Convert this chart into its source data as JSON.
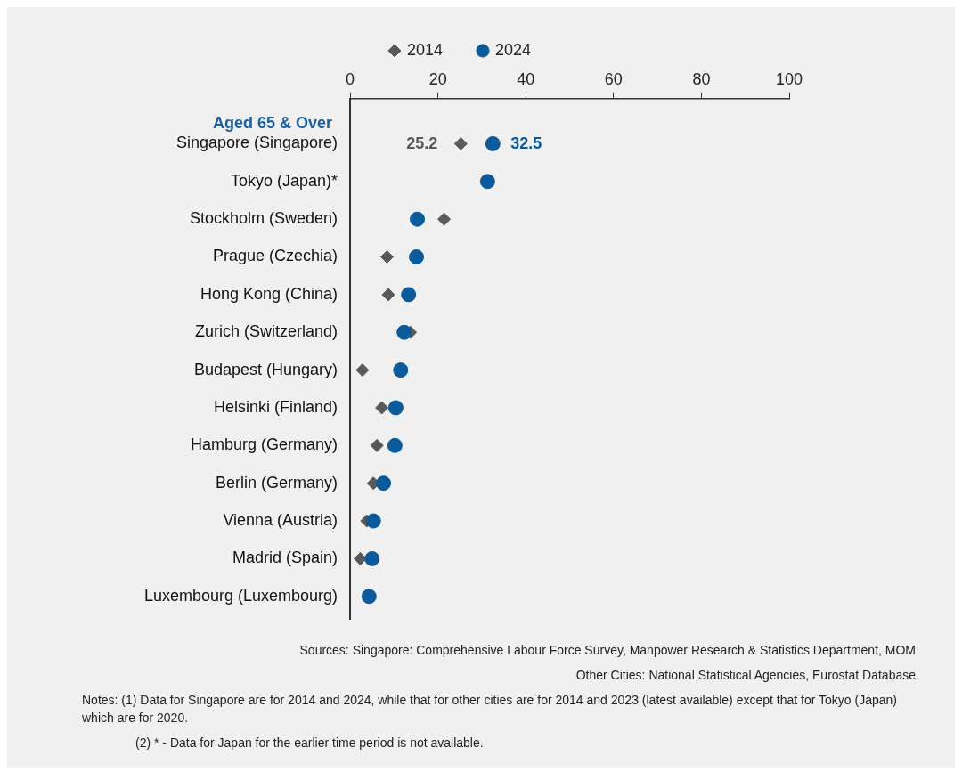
{
  "chart_data": {
    "type": "scatter",
    "subtitle": "Aged 65 & Over",
    "categories": [
      "Singapore (Singapore)",
      "Tokyo (Japan)*",
      "Stockholm (Sweden)",
      "Prague (Czechia)",
      "Hong Kong (China)",
      "Zurich (Switzerland)",
      "Budapest (Hungary)",
      "Helsinki (Finland)",
      "Hamburg (Germany)",
      "Berlin (Germany)",
      "Vienna (Austria)",
      "Madrid (Spain)",
      "Luxembourg (Luxembourg)"
    ],
    "orientation": "horizontal",
    "series": [
      {
        "name": "2014",
        "color": "#595959",
        "marker": "diamond",
        "values": [
          25.2,
          null,
          21.4,
          8.4,
          8.7,
          13.7,
          2.8,
          7.2,
          6.1,
          5.3,
          3.8,
          2.3,
          null
        ],
        "value_labels": [
          "25.2",
          null,
          null,
          null,
          null,
          null,
          null,
          null,
          null,
          null,
          null,
          null,
          null
        ]
      },
      {
        "name": "2024",
        "color": "#0a5a9c",
        "marker": "circle",
        "values": [
          32.5,
          31.3,
          15.3,
          15.1,
          13.3,
          12.3,
          11.5,
          10.4,
          10.2,
          7.6,
          5.3,
          5.0,
          4.3
        ],
        "value_labels": [
          "32.5",
          null,
          null,
          null,
          null,
          null,
          null,
          null,
          null,
          null,
          null,
          null,
          null
        ]
      }
    ],
    "xlim": [
      0,
      100
    ],
    "xticks": [
      0,
      20,
      40,
      60,
      80,
      100
    ],
    "grid": false,
    "legend": "top",
    "annotations": [
      "Sources: Singapore: Comprehensive Labour Force Survey, Manpower Research & Statistics Department, MOM",
      "Other Cities: National Statistical Agencies, Eurostat Database",
      "Notes:   (1)  Data for Singapore are for 2014 and 2024, while that for other cities are for 2014 and 2023 (latest available) except that for Tokyo (Japan) which are for 2020.",
      "(2)  * - Data for Japan for the earlier time period is not available."
    ]
  }
}
